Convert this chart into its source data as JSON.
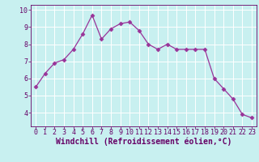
{
  "x": [
    0,
    1,
    2,
    3,
    4,
    5,
    6,
    7,
    8,
    9,
    10,
    11,
    12,
    13,
    14,
    15,
    16,
    17,
    18,
    19,
    20,
    21,
    22,
    23
  ],
  "y": [
    5.5,
    6.3,
    6.9,
    7.1,
    7.7,
    8.6,
    9.7,
    8.3,
    8.9,
    9.2,
    9.3,
    8.8,
    8.0,
    7.7,
    8.0,
    7.7,
    7.7,
    7.7,
    7.7,
    6.0,
    5.4,
    4.8,
    3.9,
    3.7
  ],
  "line_color": "#993399",
  "marker": "D",
  "marker_size": 2.5,
  "xlabel": "Windchill (Refroidissement éolien,°C)",
  "xlim": [
    -0.5,
    23.5
  ],
  "ylim": [
    3.2,
    10.3
  ],
  "yticks": [
    4,
    5,
    6,
    7,
    8,
    9,
    10
  ],
  "xticks": [
    0,
    1,
    2,
    3,
    4,
    5,
    6,
    7,
    8,
    9,
    10,
    11,
    12,
    13,
    14,
    15,
    16,
    17,
    18,
    19,
    20,
    21,
    22,
    23
  ],
  "background_color": "#c8f0f0",
  "grid_color": "#ffffff",
  "tick_color": "#660066",
  "xlabel_color": "#660066",
  "tick_fontsize": 6,
  "xlabel_fontsize": 7
}
